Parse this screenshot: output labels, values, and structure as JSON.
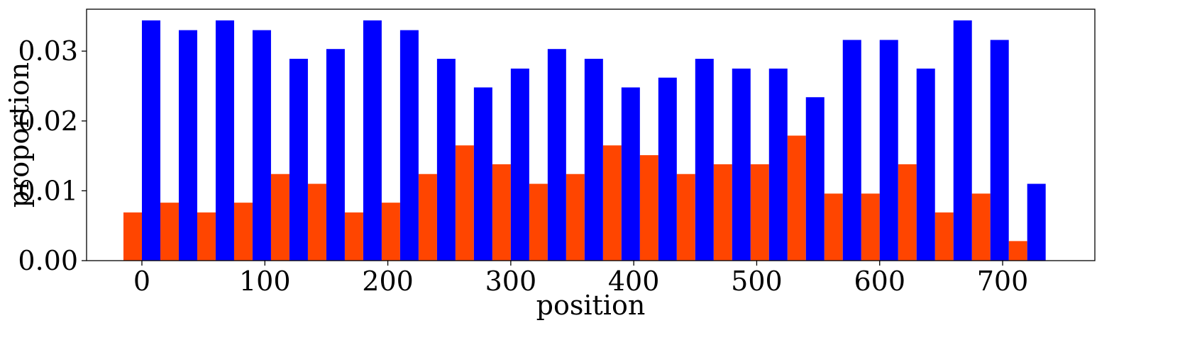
{
  "chart_data": {
    "type": "bar",
    "title": "",
    "xlabel": "position",
    "ylabel": "proportion",
    "bin_width": 30,
    "xlim": [
      -45,
      775
    ],
    "ylim": [
      0,
      0.036
    ],
    "xticks": [
      0,
      100,
      200,
      300,
      400,
      500,
      600,
      700
    ],
    "xtick_labels": [
      "0",
      "100",
      "200",
      "300",
      "400",
      "500",
      "600",
      "700"
    ],
    "yticks": [
      0,
      0.01,
      0.02,
      0.03
    ],
    "ytick_labels": [
      "0.00",
      "0.01",
      "0.02",
      "0.03"
    ],
    "grid": false,
    "x": [
      0,
      30,
      60,
      90,
      120,
      150,
      180,
      210,
      240,
      270,
      300,
      330,
      360,
      390,
      420,
      450,
      480,
      510,
      540,
      570,
      600,
      630,
      660,
      690,
      720
    ],
    "series": [
      {
        "color": "#ff4500",
        "values": [
          0.0069,
          0.0083,
          0.0069,
          0.0083,
          0.0124,
          0.011,
          0.0069,
          0.0083,
          0.0124,
          0.0165,
          0.0138,
          0.011,
          0.0124,
          0.0165,
          0.0151,
          0.0124,
          0.0138,
          0.0138,
          0.0179,
          0.0096,
          0.0096,
          0.0138,
          0.0069,
          0.0096,
          0.0028
        ]
      },
      {
        "color": "#0000ff",
        "values": [
          0.0344,
          0.033,
          0.0344,
          0.033,
          0.0289,
          0.0303,
          0.0344,
          0.033,
          0.0289,
          0.0248,
          0.0275,
          0.0303,
          0.0289,
          0.0248,
          0.0262,
          0.0289,
          0.0275,
          0.0275,
          0.0234,
          0.0316,
          0.0316,
          0.0275,
          0.0344,
          0.0316,
          0.011
        ]
      }
    ]
  }
}
